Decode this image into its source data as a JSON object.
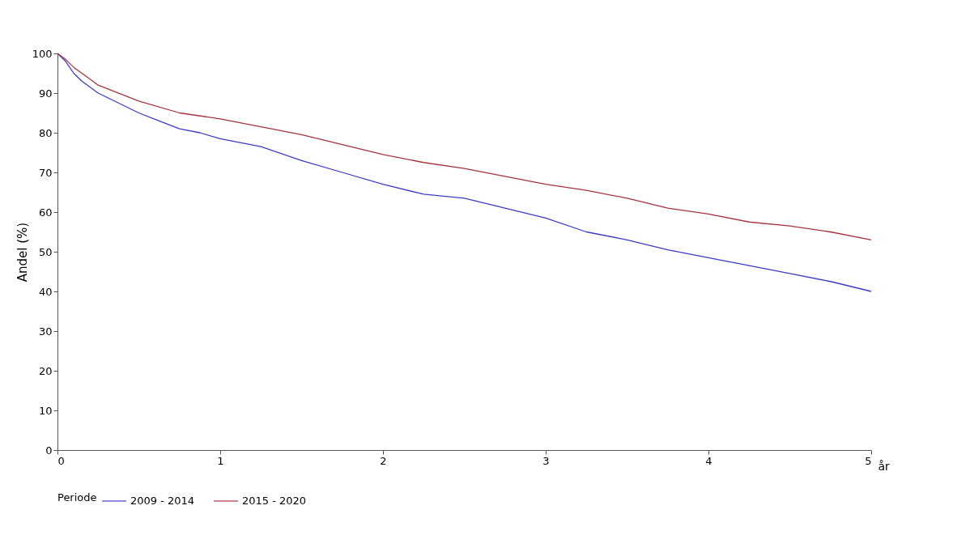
{
  "chart_data": {
    "type": "line",
    "xlabel": "år",
    "ylabel": "Andel (%)",
    "legend_title": "Periode",
    "legend": "bottom",
    "grid": false,
    "line_style": "solid",
    "xlim": [
      0,
      5
    ],
    "xticks": [
      0,
      1,
      2,
      3,
      4,
      5
    ],
    "ylim": [
      0,
      100
    ],
    "yticks": [
      0,
      10,
      20,
      30,
      40,
      50,
      60,
      70,
      80,
      90,
      100
    ],
    "series": [
      {
        "name": "2009 - 2014",
        "color": "#3b3bcc",
        "x": [
          0,
          0.05,
          0.1,
          0.15,
          0.25,
          0.375,
          0.5,
          0.625,
          0.75,
          0.875,
          1,
          1.25,
          1.5,
          1.75,
          2,
          2.25,
          2.5,
          2.75,
          3,
          3.25,
          3.5,
          3.75,
          4,
          4.25,
          4.5,
          4.75,
          5
        ],
        "values": [
          100,
          98,
          95,
          93,
          90,
          87.5,
          85,
          83,
          81,
          80,
          78.5,
          76.5,
          73,
          70,
          67,
          64.5,
          63.5,
          61,
          58.5,
          55,
          53,
          50.5,
          48.5,
          46.5,
          44.5,
          42.5,
          40
        ]
      },
      {
        "name": "2015 - 2020",
        "color": "#a8323e",
        "x": [
          0,
          0.05,
          0.1,
          0.2,
          0.25,
          0.5,
          0.75,
          1,
          1.25,
          1.5,
          1.75,
          2,
          2.25,
          2.5,
          2.75,
          3,
          3.25,
          3.5,
          3.75,
          4,
          4.25,
          4.5,
          4.75,
          5
        ],
        "values": [
          100,
          98.5,
          96.5,
          93.5,
          92,
          88,
          85,
          83.5,
          81.5,
          79.5,
          77,
          74.5,
          72.5,
          71,
          69,
          67,
          65.5,
          63.5,
          61,
          59.5,
          57.5,
          56.5,
          55,
          53
        ]
      }
    ]
  }
}
